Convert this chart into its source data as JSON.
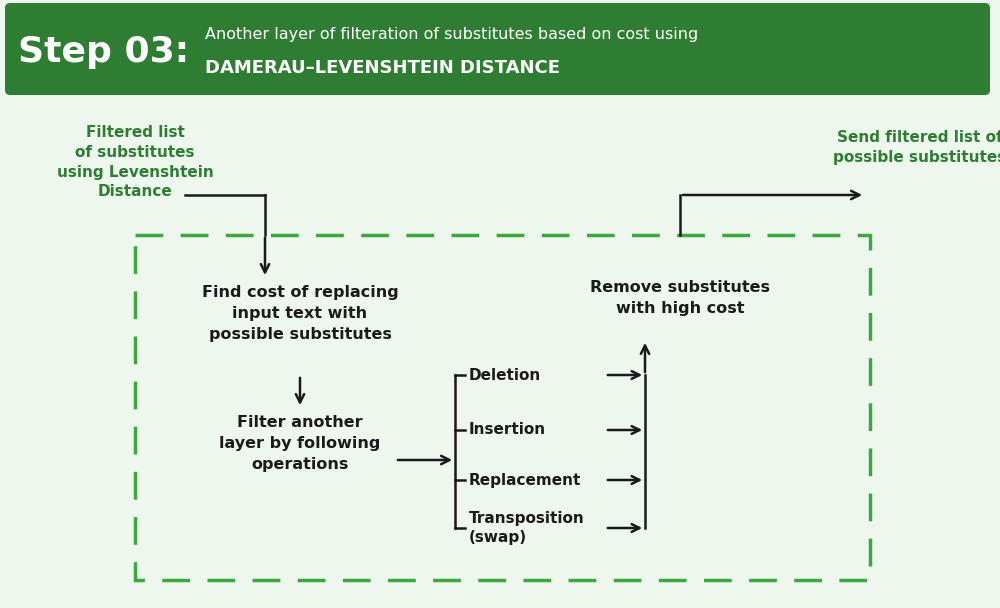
{
  "background_color": "#eef7ee",
  "header_bg_color": "#2e7d32",
  "header_text_color": "#ffffff",
  "header_step_text": "Step 03:",
  "header_line1": "Another layer of filteration of substitutes based on cost using",
  "header_line2": "DAMERAU–LEVENSHTEIN DISTANCE",
  "green_text_color": "#2e7d32",
  "black_text_color": "#1a1a1a",
  "dashed_border_color": "#3da83d",
  "arrow_color": "#1a1a1a",
  "input_label": "Filtered list\nof substitutes\nusing Levenshtein\nDistance",
  "output_label": "Send filtered list of\npossible substitutes",
  "box1_label": "Find cost of replacing\ninput text with\npossible substitutes",
  "box2_label": "Filter another\nlayer by following\noperations",
  "box3_label": "Remove substitutes\nwith high cost",
  "ops": [
    "Deletion",
    "Insertion",
    "Replacement",
    "Transposition\n(swap)"
  ]
}
